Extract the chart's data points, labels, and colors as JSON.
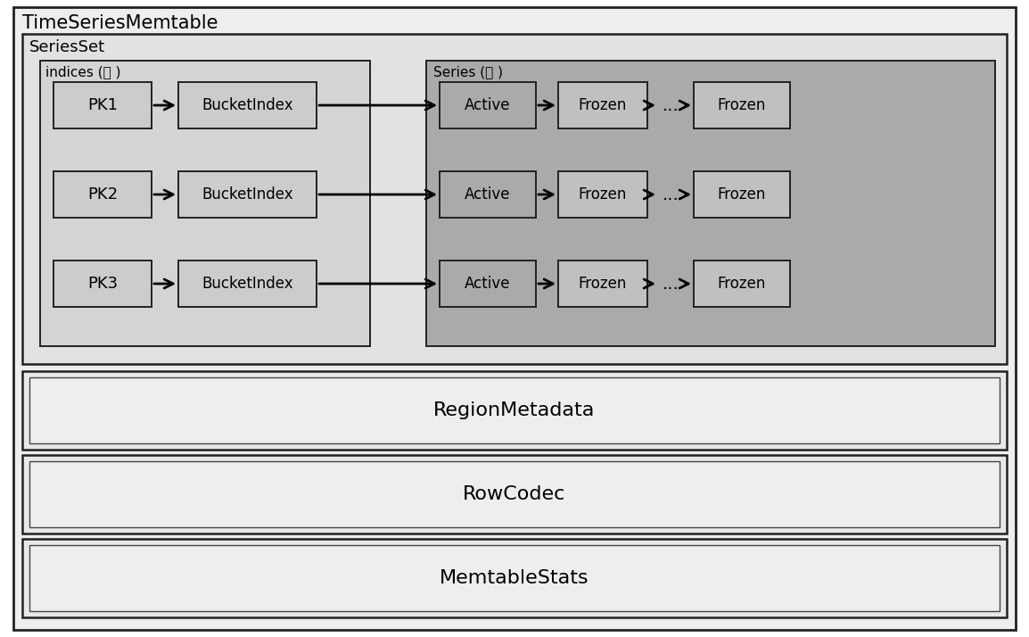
{
  "title": "TimeSeriesMemtable",
  "seriesset_label": "SeriesSet",
  "indices_label": "indices (🔒 )",
  "series_label": "Series (🔒 )",
  "pk_labels": [
    "PK1",
    "PK2",
    "PK3"
  ],
  "bucket_label": "BucketIndex",
  "active_label": "Active",
  "frozen_label": "Frozen",
  "dots_label": "...",
  "bottom_boxes": [
    "RegionMetadata",
    "RowCodec",
    "MemtableStats"
  ],
  "bg_outer": "#eeeeee",
  "bg_seriesset": "#e2e2e2",
  "bg_indices": "#d4d4d4",
  "bg_series_area": "#aaaaaa",
  "bg_box_pk": "#cccccc",
  "bg_box_bi": "#cccccc",
  "bg_box_active": "#aaaaaa",
  "bg_box_frozen": "#c0c0c0",
  "bg_bottom": "#e8e8e8",
  "edge_color": "#222222",
  "arrow_color": "black"
}
